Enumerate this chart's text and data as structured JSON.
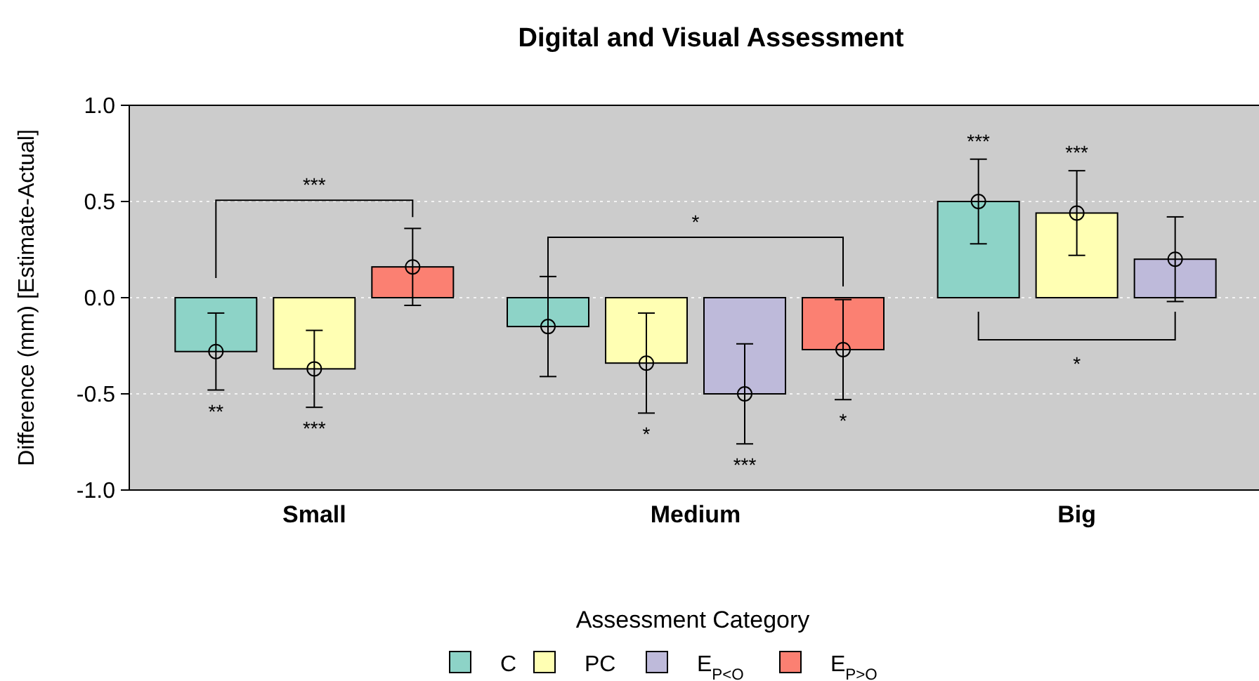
{
  "chart_data": {
    "type": "bar",
    "title": "Digital and Visual Assessment",
    "ylabel": "Difference (mm) [Estimate-Actual]",
    "legend_title": "Assessment Category",
    "categories": [
      "Small",
      "Medium",
      "Big"
    ],
    "series": [
      {
        "name": "C",
        "color": "#8dd3c7",
        "marker": "circle",
        "values": [
          -0.28,
          -0.15,
          0.5
        ],
        "errors": [
          0.2,
          0.26,
          0.22
        ],
        "value_labels": [
          "**",
          null,
          "***"
        ]
      },
      {
        "name": "PC",
        "color": "#ffffb3",
        "marker": "circle",
        "values": [
          -0.37,
          -0.34,
          0.44
        ],
        "errors": [
          0.2,
          0.26,
          0.22
        ],
        "value_labels": [
          "***",
          "*",
          "***"
        ]
      },
      {
        "name": "E$_{P<O}$",
        "color": "#bebada",
        "marker": "circle",
        "values": [
          null,
          -0.5,
          0.2
        ],
        "errors": [
          null,
          0.26,
          0.22
        ],
        "value_labels": [
          null,
          "***",
          null
        ]
      },
      {
        "name": "E$_{P>O}$",
        "color": "#fb8072",
        "marker": "circle",
        "values": [
          0.16,
          -0.27,
          null
        ],
        "errors": [
          0.2,
          0.26,
          null
        ],
        "value_labels": [
          null,
          "*",
          null
        ]
      }
    ],
    "annotations": [
      "***",
      "*",
      "*"
    ],
    "ylim": [
      -1,
      1
    ],
    "yticks": [
      {
        "value": -1,
        "label": "-1.0"
      },
      {
        "value": -0.5,
        "label": "-0.5"
      },
      {
        "value": 0,
        "label": "0.0"
      },
      {
        "value": 0.5,
        "label": "0.5"
      },
      {
        "value": 1,
        "label": "1.0"
      }
    ],
    "grid": "y",
    "legend": "bottom"
  }
}
